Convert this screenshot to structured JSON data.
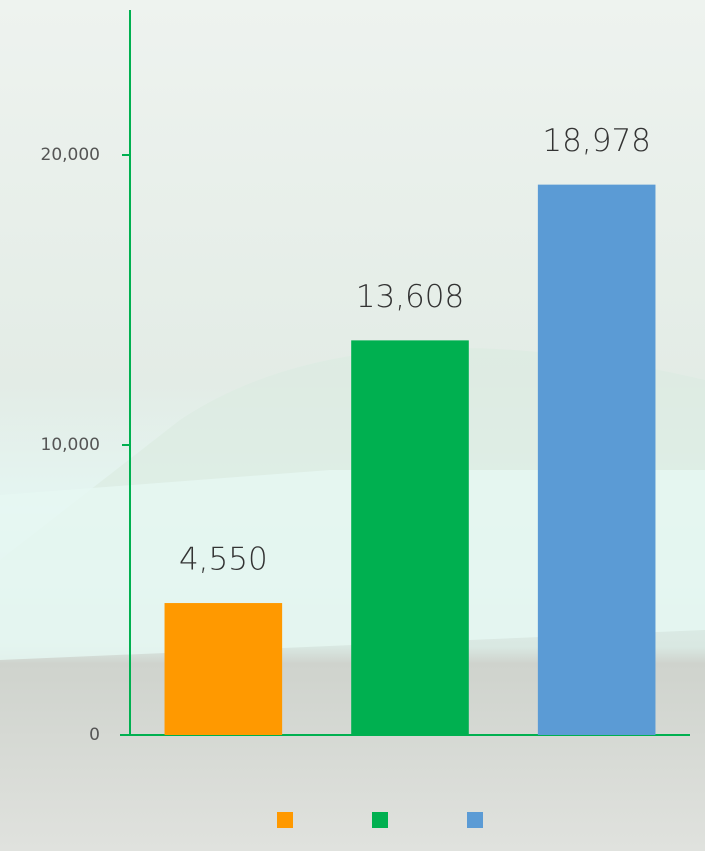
{
  "chart_data": {
    "type": "bar",
    "categories": [
      null,
      null,
      null
    ],
    "values": [
      4550,
      13608,
      18978
    ],
    "value_labels": [
      "4,550",
      "13,608",
      "18,978"
    ],
    "colors": [
      "#ff9900",
      "#00b050",
      "#5b9bd5"
    ],
    "ylim": [
      0,
      25000
    ],
    "yticks": [
      0,
      {
        "value": 10000,
        "label": "10,000"
      },
      {
        "value": 20000,
        "label": "20,000"
      }
    ],
    "axis_color": "#00b050",
    "legend": "bottom"
  }
}
